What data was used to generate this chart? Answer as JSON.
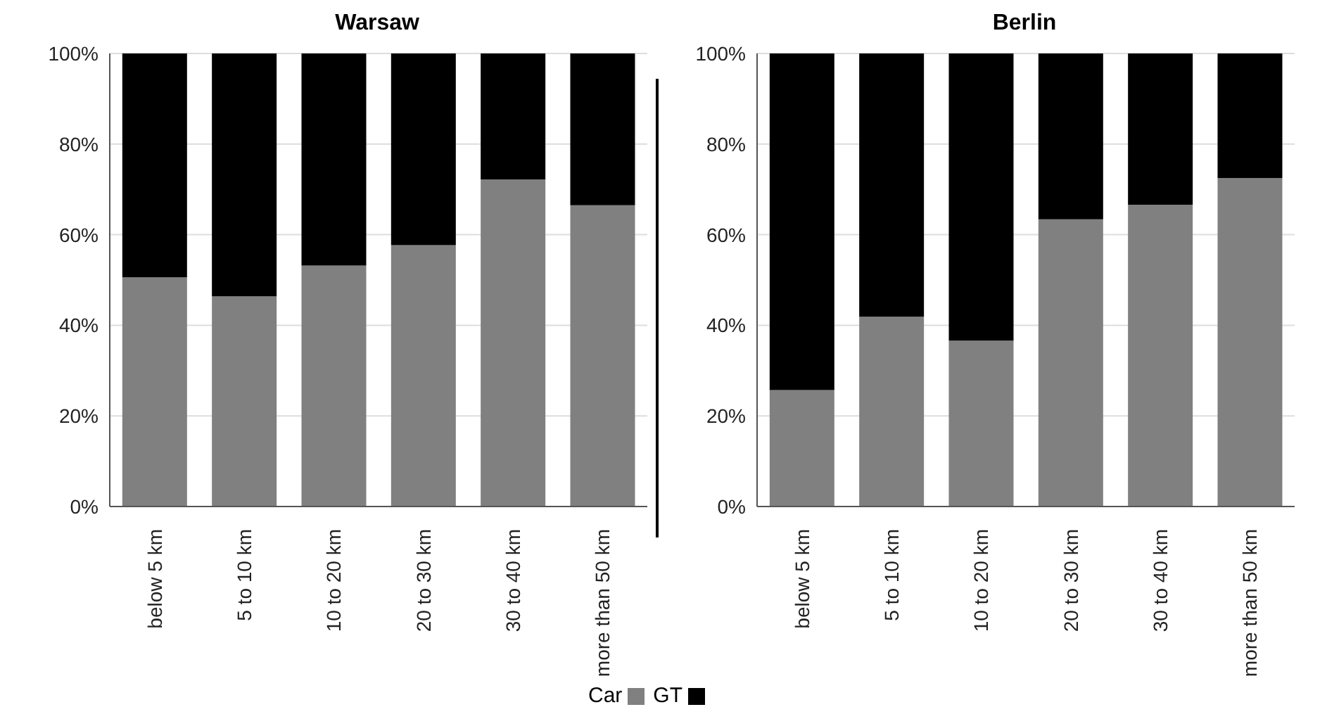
{
  "chart_data": [
    {
      "type": "bar",
      "title": "Warsaw",
      "stacked": true,
      "categories": [
        "below 5 km",
        "5 to 10 km",
        "10 to 20 km",
        "20 to 30 km",
        "30 to 40 km",
        "more than 50 km"
      ],
      "series": [
        {
          "name": "Car",
          "color": "#808080",
          "values": [
            50.6,
            46.4,
            53.2,
            57.7,
            72.2,
            66.5
          ]
        },
        {
          "name": "GT",
          "color": "#000000",
          "values": [
            49.4,
            53.6,
            46.8,
            42.3,
            27.8,
            33.5
          ]
        }
      ],
      "ylim": [
        0,
        100
      ],
      "yticks": [
        {
          "value": 0,
          "label": "0%"
        },
        {
          "value": 20,
          "label": "20%"
        },
        {
          "value": 40,
          "label": "40%"
        },
        {
          "value": 60,
          "label": "60%"
        },
        {
          "value": 80,
          "label": "80%"
        },
        {
          "value": 100,
          "label": "100%"
        }
      ],
      "grid": "y",
      "legend": "bottom"
    },
    {
      "type": "bar",
      "title": "Berlin",
      "stacked": true,
      "categories": [
        "below 5 km",
        "5 to 10 km",
        "10 to 20 km",
        "20 to 30 km",
        "30 to 40 km",
        "more than 50 km"
      ],
      "series": [
        {
          "color": "#808080",
          "values": [
            25.7,
            41.9,
            36.6,
            63.4,
            66.6,
            72.5
          ]
        },
        {
          "color": "#000000",
          "values": [
            74.3,
            58.1,
            63.4,
            36.6,
            33.4,
            27.5
          ]
        }
      ],
      "ylim": [
        0,
        100
      ],
      "yticks": [
        {
          "value": 0,
          "label": "0%"
        },
        {
          "value": 20,
          "label": "20%"
        },
        {
          "value": 40,
          "label": "40%"
        },
        {
          "value": 60,
          "label": "60%"
        },
        {
          "value": 80,
          "label": "80%"
        },
        {
          "value": 100,
          "label": "100%"
        }
      ],
      "grid": "y"
    }
  ]
}
